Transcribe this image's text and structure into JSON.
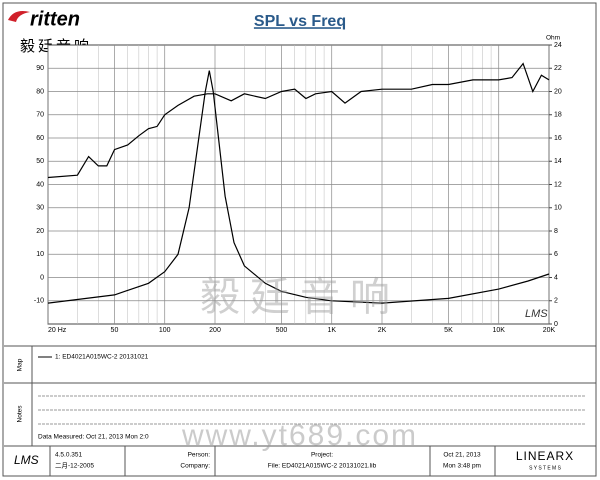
{
  "header": {
    "logo": "ritten",
    "logo_cn": "毅廷音响"
  },
  "chart_data": {
    "type": "line",
    "title": "SPL vs Freq",
    "y2_label": "Ohm",
    "xscale": "log",
    "xlim": [
      20,
      20000
    ],
    "xticks": [
      {
        "value": 20,
        "label": "20 Hz"
      },
      50,
      100,
      200,
      500,
      {
        "value": 1000,
        "label": "1K"
      },
      {
        "value": 2000,
        "label": "2K"
      },
      {
        "value": 5000,
        "label": "5K"
      },
      {
        "value": 10000,
        "label": "10K"
      },
      {
        "value": 20000,
        "label": "20K"
      }
    ],
    "xminorticks": [
      30,
      40,
      60,
      70,
      80,
      90,
      300,
      400,
      600,
      700,
      800,
      900,
      3000,
      4000,
      6000,
      7000,
      8000,
      9000
    ],
    "ylim": [
      -20,
      100
    ],
    "yticks": [
      -10,
      0,
      10,
      20,
      30,
      40,
      50,
      60,
      70,
      80,
      90
    ],
    "y2lim": [
      0,
      24
    ],
    "y2ticks": [
      0,
      2,
      4,
      6,
      8,
      10,
      12,
      14,
      16,
      18,
      20,
      22,
      24
    ],
    "grid": true,
    "series": [
      {
        "color": "#000000",
        "x": [
          20,
          30,
          35,
          40,
          45,
          50,
          60,
          70,
          80,
          90,
          100,
          120,
          150,
          180,
          200,
          250,
          300,
          400,
          500,
          600,
          700,
          800,
          1000,
          1200,
          1500,
          2000,
          3000,
          4000,
          5000,
          7000,
          10000,
          12000,
          14000,
          16000,
          18000,
          20000
        ],
        "values": [
          43,
          44,
          52,
          48,
          48,
          55,
          57,
          61,
          64,
          65,
          70,
          74,
          78,
          79,
          79,
          76,
          79,
          77,
          80,
          81,
          77,
          79,
          80,
          75,
          80,
          81,
          81,
          83,
          83,
          85,
          85,
          86,
          92,
          80,
          87,
          85
        ]
      },
      {
        "color": "#000000",
        "axis": "y2",
        "x": [
          20,
          50,
          80,
          100,
          120,
          140,
          160,
          175,
          185,
          195,
          210,
          230,
          260,
          300,
          400,
          500,
          700,
          1000,
          2000,
          5000,
          10000,
          15000,
          20000
        ],
        "values": [
          1.8,
          2.5,
          3.5,
          4.5,
          6,
          10,
          16,
          20,
          21.8,
          20,
          16,
          11,
          7,
          5,
          3.5,
          2.8,
          2.3,
          2.0,
          1.8,
          2.2,
          3,
          3.7,
          4.3
        ]
      }
    ],
    "watermark": "LMS"
  },
  "map": {
    "label": "Map",
    "entry": "1: ED4021A015WC-2  20131021"
  },
  "notes": {
    "label": "Notes",
    "measured": "Data Measured: Oct 21, 2013  Mon  2:0"
  },
  "footer": {
    "logo": "LMS",
    "version": "4.5.0.351",
    "build_date": "二月-12-2005",
    "person": "Person:",
    "company": "Company:",
    "project": "Project:",
    "file": "File: ED4021A015WC-2 20131021.lib",
    "date": "Oct 21, 2013",
    "time": "Mon  3:48 pm",
    "brand": "LINEARX",
    "brand_sub": "S Y S T E M S"
  },
  "watermarks": [
    "毅廷音响",
    "www.yt689.com"
  ]
}
